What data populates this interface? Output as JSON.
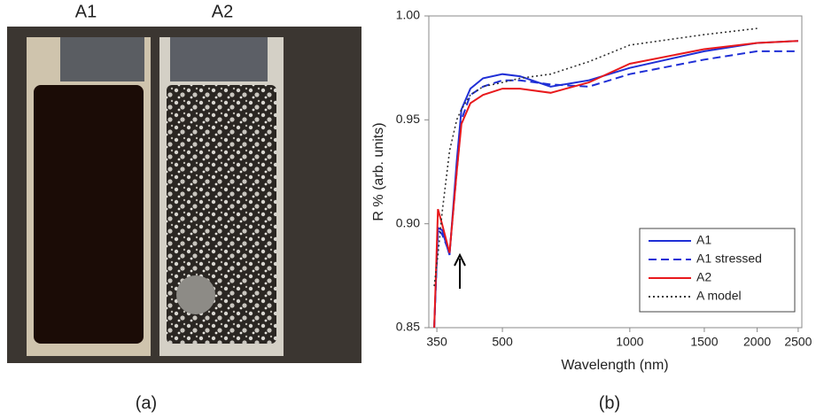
{
  "panel_a": {
    "labels": [
      "A1",
      "A2"
    ],
    "caption": "(a)"
  },
  "chart_data": {
    "type": "line",
    "caption": "(b)",
    "x_label": "Wavelength (nm)",
    "y_label": "R % (arb. units)",
    "x_scale": "log",
    "xlim": [
      335,
      2550
    ],
    "xticks": [
      350,
      500,
      1000,
      1500,
      2000,
      2500
    ],
    "ylim": [
      0.85,
      1.0
    ],
    "yticks": [
      0.85,
      {
        "value": 0.9,
        "label": "0.90"
      },
      0.95,
      {
        "value": 1.0,
        "label": "1.00"
      }
    ],
    "x": [
      345,
      352,
      360,
      375,
      390,
      400,
      420,
      450,
      500,
      550,
      650,
      800,
      1000,
      1500,
      2000,
      2500
    ],
    "series": [
      {
        "name": "A1",
        "color": "#1f2fd6",
        "dash": "solid",
        "values": [
          0.85,
          0.898,
          0.897,
          0.885,
          0.93,
          0.955,
          0.965,
          0.97,
          0.972,
          0.971,
          0.966,
          0.969,
          0.975,
          0.983,
          0.987,
          0.988
        ]
      },
      {
        "name": "A1 stressed",
        "color": "#1f2fd6",
        "dash": "dashed",
        "values": [
          0.85,
          0.897,
          0.895,
          0.886,
          0.925,
          0.95,
          0.962,
          0.966,
          0.969,
          0.969,
          0.967,
          0.966,
          0.972,
          0.979,
          0.983,
          0.983
        ]
      },
      {
        "name": "A2",
        "color": "#e8191c",
        "dash": "solid",
        "values": [
          0.85,
          0.907,
          0.9,
          0.886,
          0.925,
          0.948,
          0.958,
          0.962,
          0.965,
          0.965,
          0.963,
          0.968,
          0.977,
          0.984,
          0.987,
          0.988
        ]
      },
      {
        "name": "A model",
        "color": "#333333",
        "dash": "dotted",
        "values": [
          0.87,
          0.885,
          0.905,
          0.935,
          0.95,
          0.955,
          0.962,
          0.966,
          0.968,
          0.97,
          0.972,
          0.978,
          0.986,
          0.991,
          0.994,
          null
        ]
      }
    ],
    "legend": "lower-right"
  }
}
